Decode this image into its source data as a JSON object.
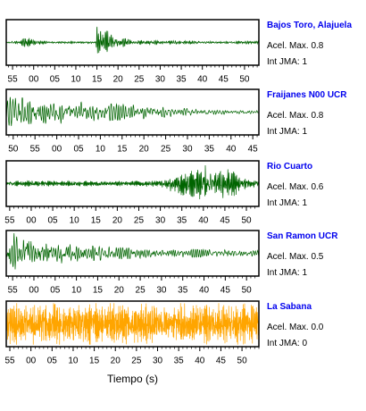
{
  "colors": {
    "station_name": "#0000ee",
    "frame": "#000000"
  },
  "chart_data": [
    {
      "type": "line",
      "title": "Bajos Toro, Alajuela",
      "acel_max": "Acel. Max. 0.8",
      "int_jma": "Int JMA: 1",
      "color": "#006400",
      "grid": false,
      "xlim": [
        53.5,
        113.4
      ],
      "xticks": [
        55,
        60,
        65,
        70,
        75,
        80,
        85,
        90,
        95,
        100,
        105,
        110
      ],
      "xticklabels": [
        "55",
        "00",
        "05",
        "10",
        "15",
        "20",
        "25",
        "30",
        "35",
        "40",
        "45",
        "50"
      ],
      "amplitude_envelope": [
        [
          53.5,
          0.05
        ],
        [
          56.5,
          0.06
        ],
        [
          57.5,
          0.18
        ],
        [
          59,
          0.2
        ],
        [
          61,
          0.1
        ],
        [
          63,
          0.06
        ],
        [
          74.7,
          0.05
        ],
        [
          74.9,
          0.95
        ],
        [
          76,
          0.9
        ],
        [
          77,
          0.6
        ],
        [
          78.5,
          0.4
        ],
        [
          80,
          0.25
        ],
        [
          83,
          0.14
        ],
        [
          88,
          0.09
        ],
        [
          95,
          0.07
        ],
        [
          113.4,
          0.06
        ]
      ]
    },
    {
      "type": "line",
      "title": "Fraijanes N00 UCR",
      "acel_max": "Acel. Max. 0.8",
      "int_jma": "Int JMA: 1",
      "color": "#006400",
      "grid": false,
      "xlim": [
        48.4,
        106.4
      ],
      "xticks": [
        50,
        55,
        60,
        65,
        70,
        75,
        80,
        85,
        90,
        95,
        100,
        105
      ],
      "xticklabels": [
        "50",
        "55",
        "00",
        "05",
        "10",
        "15",
        "20",
        "25",
        "30",
        "35",
        "40",
        "45"
      ],
      "amplitude_envelope": [
        [
          48.4,
          0.95
        ],
        [
          48.9,
          0.9
        ],
        [
          49.5,
          0.65
        ],
        [
          55,
          0.65
        ],
        [
          59,
          0.55
        ],
        [
          66,
          0.45
        ],
        [
          75,
          0.35
        ],
        [
          82,
          0.28
        ],
        [
          88,
          0.18
        ],
        [
          95,
          0.12
        ],
        [
          100,
          0.09
        ],
        [
          106.4,
          0.07
        ]
      ]
    },
    {
      "type": "line",
      "title": "Rio Cuarto",
      "acel_max": "Acel. Max. 0.6",
      "int_jma": "Int JMA: 1",
      "color": "#006400",
      "grid": false,
      "xlim": [
        54.2,
        112.9
      ],
      "xticks": [
        55,
        60,
        65,
        70,
        75,
        80,
        85,
        90,
        95,
        100,
        105,
        110
      ],
      "xticklabels": [
        "55",
        "00",
        "05",
        "10",
        "15",
        "20",
        "25",
        "30",
        "35",
        "40",
        "45",
        "50"
      ],
      "amplitude_envelope": [
        [
          54.2,
          0.13
        ],
        [
          70,
          0.12
        ],
        [
          88,
          0.12
        ],
        [
          91,
          0.2
        ],
        [
          93,
          0.45
        ],
        [
          95.3,
          0.8
        ],
        [
          97,
          0.55
        ],
        [
          100.3,
          1.0
        ],
        [
          101.5,
          0.6
        ],
        [
          103.6,
          0.9
        ],
        [
          105,
          0.55
        ],
        [
          106.7,
          0.8
        ],
        [
          108.3,
          0.35
        ],
        [
          110,
          0.2
        ],
        [
          112.9,
          0.15
        ]
      ]
    },
    {
      "type": "line",
      "title": "San Ramon UCR",
      "acel_max": "Acel. Max. 0.5",
      "int_jma": "Int JMA: 1",
      "color": "#006400",
      "grid": false,
      "xlim": [
        53.5,
        112.9
      ],
      "xticks": [
        55,
        60,
        65,
        70,
        75,
        80,
        85,
        90,
        95,
        100,
        105,
        110
      ],
      "xticklabels": [
        "55",
        "00",
        "05",
        "10",
        "15",
        "20",
        "25",
        "30",
        "35",
        "40",
        "45",
        "50"
      ],
      "amplitude_envelope": [
        [
          53.5,
          0.8
        ],
        [
          55,
          0.95
        ],
        [
          59,
          0.9
        ],
        [
          61,
          0.7
        ],
        [
          65,
          0.55
        ],
        [
          69,
          0.4
        ],
        [
          75,
          0.32
        ],
        [
          81,
          0.25
        ],
        [
          90,
          0.2
        ],
        [
          100,
          0.17
        ],
        [
          112.9,
          0.14
        ]
      ]
    },
    {
      "type": "line",
      "title": "La Sabana",
      "acel_max": "Acel. Max. 0.0",
      "int_jma": "Int JMA: 0",
      "color": "#ffa500",
      "grid": false,
      "xlabel": "Tiempo (s)",
      "xlim": [
        54.15,
        114.0
      ],
      "xticks": [
        55,
        60,
        65,
        70,
        75,
        80,
        85,
        90,
        95,
        100,
        105,
        110
      ],
      "xticklabels": [
        "55",
        "00",
        "05",
        "10",
        "15",
        "20",
        "25",
        "30",
        "35",
        "40",
        "45",
        "50"
      ],
      "amplitude_envelope": [
        [
          54.15,
          0.95
        ],
        [
          114.0,
          0.95
        ]
      ]
    }
  ]
}
